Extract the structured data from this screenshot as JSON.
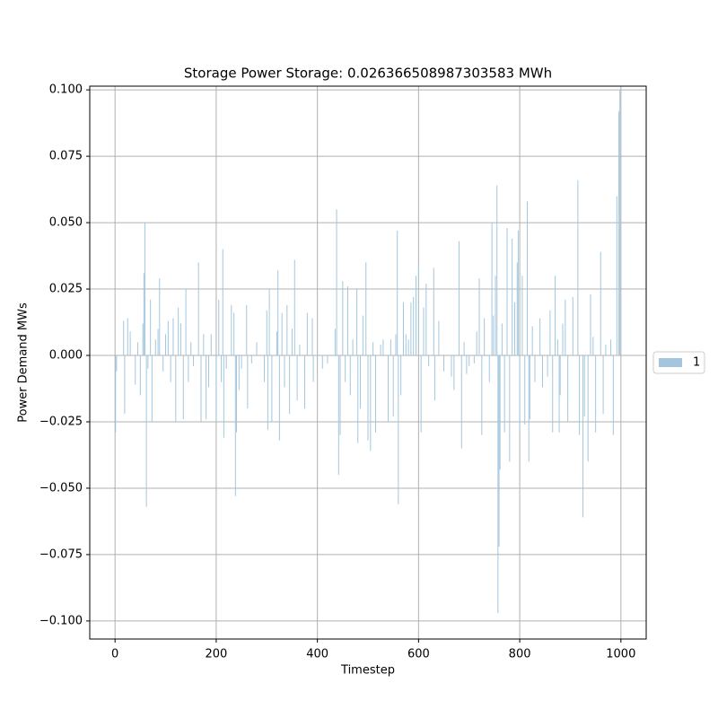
{
  "chart_data": {
    "type": "bar",
    "title": "Storage Power Storage: 0.026366508987303583 MWh",
    "x_label": "Timestep",
    "y_label": "Power Demand MWs",
    "x": [
      1,
      3,
      17,
      19,
      25,
      30,
      40,
      45,
      50,
      55,
      57,
      59,
      62,
      65,
      70,
      73,
      80,
      85,
      88,
      95,
      100,
      105,
      110,
      115,
      120,
      125,
      130,
      135,
      140,
      145,
      150,
      155,
      165,
      170,
      175,
      180,
      185,
      190,
      200,
      205,
      210,
      213,
      215,
      220,
      230,
      235,
      238,
      240,
      245,
      250,
      260,
      262,
      270,
      280,
      295,
      300,
      302,
      305,
      310,
      320,
      322,
      325,
      330,
      335,
      340,
      345,
      350,
      355,
      360,
      365,
      375,
      380,
      390,
      392,
      400,
      410,
      420,
      435,
      438,
      442,
      445,
      450,
      455,
      460,
      465,
      470,
      478,
      480,
      485,
      490,
      496,
      500,
      505,
      510,
      515,
      525,
      530,
      540,
      545,
      550,
      555,
      558,
      560,
      565,
      570,
      575,
      580,
      585,
      590,
      595,
      600,
      605,
      610,
      615,
      620,
      630,
      632,
      640,
      650,
      665,
      670,
      680,
      685,
      690,
      695,
      700,
      710,
      715,
      720,
      725,
      730,
      740,
      745,
      748,
      752,
      755,
      757,
      759,
      761,
      765,
      770,
      775,
      780,
      785,
      790,
      795,
      797,
      800,
      805,
      810,
      815,
      818,
      820,
      825,
      830,
      840,
      845,
      855,
      860,
      865,
      870,
      875,
      878,
      880,
      885,
      890,
      895,
      905,
      915,
      918,
      925,
      928,
      935,
      940,
      945,
      950,
      960,
      965,
      970,
      980,
      985,
      992,
      996,
      998
    ],
    "series": [
      {
        "name": "1",
        "color": "#a3c6de",
        "values": [
          -0.029,
          -0.006,
          0.013,
          -0.022,
          0.014,
          0.009,
          -0.011,
          0.005,
          -0.015,
          0.012,
          0.031,
          0.05,
          -0.057,
          -0.005,
          0.021,
          -0.025,
          0.006,
          0.01,
          0.029,
          -0.006,
          0.008,
          0.013,
          -0.01,
          0.014,
          -0.025,
          0.018,
          0.012,
          -0.024,
          0.025,
          -0.01,
          0.005,
          -0.004,
          0.035,
          -0.025,
          0.008,
          -0.024,
          -0.012,
          0.008,
          -0.025,
          0.021,
          -0.01,
          0.04,
          -0.031,
          -0.005,
          0.019,
          0.016,
          -0.053,
          -0.029,
          -0.013,
          -0.005,
          0.019,
          -0.02,
          -0.003,
          0.005,
          -0.01,
          0.017,
          -0.028,
          0.025,
          -0.025,
          0.009,
          0.032,
          -0.032,
          0.016,
          -0.012,
          0.019,
          -0.022,
          0.01,
          0.036,
          -0.017,
          0.004,
          -0.02,
          0.016,
          0.014,
          -0.01,
          0.001,
          -0.005,
          -0.003,
          0.01,
          0.055,
          -0.045,
          -0.03,
          0.028,
          -0.01,
          0.026,
          -0.015,
          0.006,
          0.025,
          -0.033,
          -0.02,
          0.015,
          0.035,
          -0.032,
          -0.036,
          0.005,
          -0.029,
          0.004,
          0.006,
          -0.025,
          0.006,
          -0.023,
          0.008,
          0.047,
          -0.056,
          -0.015,
          0.02,
          0.008,
          0.006,
          0.02,
          0.022,
          0.03,
          0.034,
          -0.029,
          0.018,
          0.027,
          -0.004,
          0.033,
          -0.017,
          0.013,
          -0.006,
          -0.008,
          -0.013,
          0.043,
          -0.035,
          0.005,
          -0.007,
          -0.004,
          -0.003,
          0.009,
          0.029,
          -0.03,
          0.014,
          -0.01,
          0.05,
          0.015,
          0.03,
          0.064,
          -0.097,
          -0.072,
          -0.043,
          0.012,
          -0.029,
          0.048,
          -0.04,
          0.044,
          0.02,
          0.035,
          0.047,
          -0.029,
          0.03,
          -0.026,
          0.058,
          -0.04,
          -0.024,
          0.011,
          -0.01,
          0.014,
          -0.012,
          -0.008,
          0.017,
          -0.029,
          0.03,
          0.006,
          -0.029,
          -0.015,
          0.012,
          0.021,
          -0.025,
          0.022,
          0.066,
          -0.03,
          -0.061,
          -0.023,
          -0.04,
          0.023,
          0.007,
          -0.029,
          0.039,
          -0.022,
          0.004,
          0.006,
          -0.03,
          0.06,
          0.092,
          0.1
        ]
      }
    ],
    "xlim": [
      -50,
      1050
    ],
    "ylim": [
      -0.1068,
      0.1014
    ],
    "xticks": [
      0,
      200,
      400,
      600,
      800,
      1000
    ],
    "yticks": [
      {
        "value": -0.1,
        "label": "−0.100"
      },
      {
        "value": -0.075,
        "label": "−0.075"
      },
      {
        "value": -0.05,
        "label": "−0.050"
      },
      {
        "value": -0.025,
        "label": "−0.025"
      },
      {
        "value": 0,
        "label": "0.000"
      },
      {
        "value": 0.025,
        "label": "0.025"
      },
      {
        "value": 0.05,
        "label": "0.050"
      },
      {
        "value": 0.075,
        "label": "0.075"
      },
      {
        "value": 0.1,
        "label": "0.100"
      }
    ],
    "grid": true,
    "legend": "right"
  }
}
